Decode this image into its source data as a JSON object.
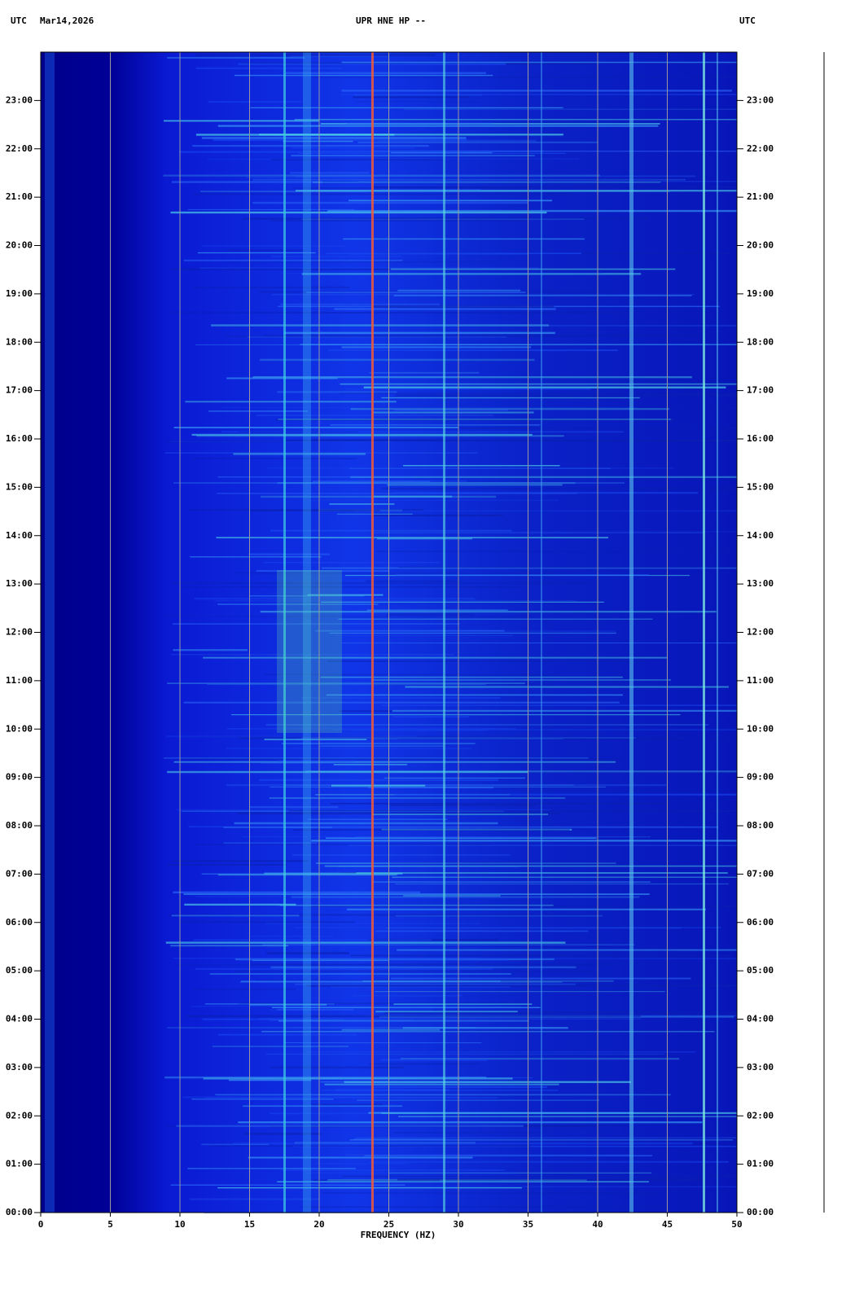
{
  "chart_data": {
    "type": "spectrogram",
    "header_left": "UTC",
    "date": "Mar14,2026",
    "title": "UPR HNE HP --",
    "header_right": "UTC",
    "x_label": "FREQUENCY (HZ)",
    "xlim": [
      0,
      50
    ],
    "xticks": [
      0,
      5,
      10,
      15,
      20,
      25,
      30,
      35,
      40,
      45,
      50
    ],
    "grid": true,
    "ylim": [
      0,
      24
    ],
    "yticks": [
      {
        "value": 0,
        "label": "00:00"
      },
      {
        "value": 1,
        "label": "01:00"
      },
      {
        "value": 2,
        "label": "02:00"
      },
      {
        "value": 3,
        "label": "03:00"
      },
      {
        "value": 4,
        "label": "04:00"
      },
      {
        "value": 5,
        "label": "05:00"
      },
      {
        "value": 6,
        "label": "06:00"
      },
      {
        "value": 7,
        "label": "07:00"
      },
      {
        "value": 8,
        "label": "08:00"
      },
      {
        "value": 9,
        "label": "09:00"
      },
      {
        "value": 10,
        "label": "10:00"
      },
      {
        "value": 11,
        "label": "11:00"
      },
      {
        "value": 12,
        "label": "12:00"
      },
      {
        "value": 13,
        "label": "13:00"
      },
      {
        "value": 14,
        "label": "14:00"
      },
      {
        "value": 15,
        "label": "15:00"
      },
      {
        "value": 16,
        "label": "16:00"
      },
      {
        "value": 17,
        "label": "17:00"
      },
      {
        "value": 18,
        "label": "18:00"
      },
      {
        "value": 19,
        "label": "19:00"
      },
      {
        "value": 20,
        "label": "20:00"
      },
      {
        "value": 21,
        "label": "21:00"
      },
      {
        "value": 22,
        "label": "22:00"
      },
      {
        "value": 23,
        "label": "23:00"
      }
    ]
  }
}
